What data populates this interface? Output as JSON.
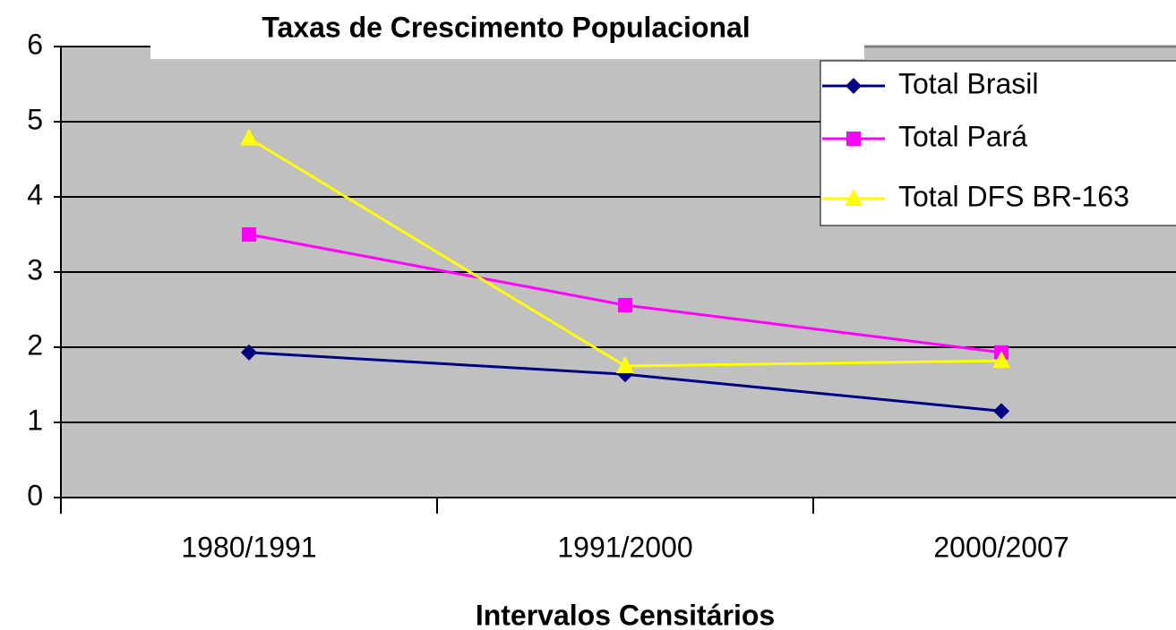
{
  "chart_data": {
    "type": "line",
    "title": "Taxas de Crescimento Populacional",
    "x_label": "Intervalos Censitários",
    "categories": [
      "1980/1991",
      "1991/2000",
      "2000/2007"
    ],
    "series": [
      {
        "name": "Total Brasil",
        "color": "#000080",
        "marker": "diamond",
        "values": [
          1.93,
          1.64,
          1.15
        ]
      },
      {
        "name": "Total Pará",
        "color": "#ff00ff",
        "marker": "square",
        "values": [
          3.5,
          2.56,
          1.93
        ]
      },
      {
        "name": "Total DFS BR-163",
        "color": "#ffff00",
        "marker": "triangle",
        "values": [
          4.78,
          1.75,
          1.82
        ]
      }
    ],
    "ylim": [
      0,
      6
    ],
    "yticks": [
      0,
      1,
      2,
      3,
      4,
      5,
      6
    ],
    "grid": true,
    "legend": "top-right",
    "plot_background": "#c0c0c0"
  }
}
